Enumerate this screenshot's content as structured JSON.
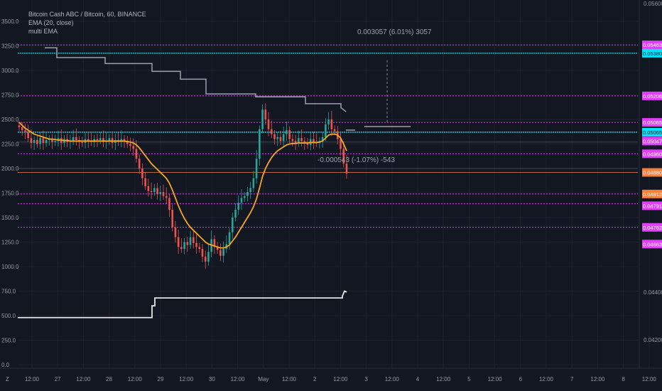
{
  "legend": {
    "title": "Bitcoin Cash ABC / Bitcoin, 60, BINANCE",
    "ema": "EMA (20, close)",
    "multi": "multi EMA"
  },
  "annotations": {
    "upper": "0.003057 (6.01%) 3057",
    "lower": "-0.000543 (-1.07%) -543"
  },
  "colors": {
    "background": "#131722",
    "grid": "#1e222d",
    "up": "#26a69a",
    "down": "#ef5350",
    "ema": "#f5a623",
    "level_magenta": "#e040fb",
    "level_cyan": "#00e5ff",
    "step_line": "#9aa0ae",
    "lower_step": "#e6e6e6",
    "orange_level": "#f57f3b"
  },
  "chart_data": {
    "type": "candlestick",
    "left_axis_ticks": [
      "3500.0",
      "3250.0",
      "3000.0",
      "2750.0",
      "2500.0",
      "2250.0",
      "2000.0",
      "1750.0",
      "1500.0",
      "1250.0",
      "1000.0",
      "750.0",
      "500.0",
      "250.0",
      "0.0"
    ],
    "right_axis_ticks": [
      "0.056000",
      "0.044000",
      "0.042000"
    ],
    "x_ticks": [
      "12:00",
      "27",
      "12:00",
      "28",
      "12:00",
      "29",
      "12:00",
      "30",
      "12:00",
      "May",
      "12:00",
      "2",
      "12:00",
      "3",
      "12:00",
      "4",
      "12:00",
      "5",
      "12:00",
      "6",
      "12:00",
      "7",
      "12:00",
      "8",
      "12:00"
    ],
    "price_tags": [
      {
        "label": "0.054632",
        "color": "#e040fb",
        "y": 3260
      },
      {
        "label": "0.053802",
        "color": "#00e5ff",
        "y": 3175
      },
      {
        "label": "0.052065",
        "color": "#e040fb",
        "y": 2740
      },
      {
        "label": "0.050654",
        "color": "#e040fb",
        "y": 2470
      },
      {
        "label": "0.050651",
        "color": "#00e5ff",
        "y": 2370
      },
      {
        "label": "0.050471",
        "color": "#e040fb",
        "y": 2280
      },
      {
        "label": "0.049606",
        "color": "#e040fb",
        "y": 2150
      },
      {
        "label": "0.048807",
        "color": "#f57f3b",
        "y": 1960
      },
      {
        "label": "0.048128",
        "color": "#f57f3b",
        "y": 1740
      },
      {
        "label": "0.047911",
        "color": "#e040fb",
        "y": 1620
      },
      {
        "label": "0.047621",
        "color": "#e040fb",
        "y": 1400
      },
      {
        "label": "0.046638",
        "color": "#e040fb",
        "y": 1230
      }
    ],
    "magenta_levels": [
      3260,
      2740,
      2470,
      2150,
      1740,
      1640,
      1400
    ],
    "cyan_levels": [
      3175,
      2370
    ],
    "orange_level": 1960,
    "gray_levels": [
      2270,
      2000
    ],
    "price_series": [
      2420,
      2390,
      2370,
      2310,
      2260,
      2290,
      2250,
      2310,
      2260,
      2290,
      2300,
      2270,
      2280,
      2310,
      2260,
      2300,
      2270,
      2280,
      2320,
      2290,
      2270,
      2260,
      2300,
      2280,
      2270,
      2300,
      2290,
      2310,
      2270,
      2280,
      2310,
      2260,
      2290,
      2270,
      2300,
      2280,
      2250,
      2230,
      2200,
      2100,
      2000,
      1900,
      1820,
      1770,
      1760,
      1800,
      1740,
      1760,
      1720,
      1700,
      1580,
      1400,
      1300,
      1200,
      1180,
      1250,
      1220,
      1300,
      1240,
      1200,
      1180,
      1100,
      1050,
      1150,
      1280,
      1200,
      1170,
      1110,
      1180,
      1230,
      1350,
      1500,
      1580,
      1650,
      1700,
      1720,
      1760,
      1800,
      1900,
      2100,
      2400,
      2600,
      2500,
      2400,
      2350,
      2300,
      2320,
      2280,
      2350,
      2390,
      2300,
      2280,
      2260,
      2310,
      2280,
      2260,
      2240,
      2300,
      2270,
      2260,
      2280,
      2320,
      2450,
      2500,
      2400,
      2380,
      2300,
      2200,
      2050,
      1950
    ],
    "ema_series": [
      2470,
      2440,
      2410,
      2390,
      2370,
      2350,
      2340,
      2330,
      2320,
      2310,
      2300,
      2300,
      2295,
      2290,
      2290,
      2285,
      2285,
      2280,
      2280,
      2280,
      2280,
      2280,
      2280,
      2280,
      2280,
      2280,
      2280,
      2280,
      2280,
      2280,
      2280,
      2280,
      2280,
      2280,
      2280,
      2280,
      2275,
      2270,
      2260,
      2240,
      2210,
      2170,
      2130,
      2090,
      2050,
      2020,
      1990,
      1960,
      1930,
      1900,
      1850,
      1780,
      1700,
      1620,
      1550,
      1490,
      1440,
      1400,
      1370,
      1340,
      1310,
      1280,
      1250,
      1230,
      1220,
      1210,
      1200,
      1190,
      1190,
      1200,
      1220,
      1260,
      1300,
      1350,
      1400,
      1450,
      1500,
      1550,
      1610,
      1690,
      1800,
      1920,
      2000,
      2060,
      2110,
      2150,
      2180,
      2200,
      2220,
      2240,
      2250,
      2255,
      2255,
      2260,
      2260,
      2260,
      2260,
      2265,
      2265,
      2265,
      2270,
      2280,
      2310,
      2340,
      2350,
      2350,
      2340,
      2310,
      2250,
      2180
    ],
    "upper_step": [
      [
        63,
        3230
      ],
      [
        80,
        3230
      ],
      [
        80,
        3130
      ],
      [
        148,
        3130
      ],
      [
        148,
        3070
      ],
      [
        214,
        3070
      ],
      [
        214,
        2990
      ],
      [
        254,
        2990
      ],
      [
        254,
        2910
      ],
      [
        290,
        2910
      ],
      [
        290,
        2760
      ],
      [
        360,
        2760
      ],
      [
        360,
        2730
      ],
      [
        430,
        2730
      ],
      [
        430,
        2660
      ],
      [
        480,
        2660
      ],
      [
        480,
        2620
      ],
      [
        487,
        2580
      ]
    ],
    "lower_step": [
      [
        25,
        480
      ],
      [
        214,
        480
      ],
      [
        214,
        600
      ],
      [
        218,
        600
      ],
      [
        218,
        680
      ],
      [
        482,
        680
      ],
      [
        482,
        700
      ],
      [
        485,
        750
      ],
      [
        488,
        740
      ]
    ],
    "measure_upper": {
      "x1": 513,
      "x2": 578,
      "y": 3175
    },
    "measure_lower": {
      "x1": 513,
      "x2": 578,
      "y": 2470
    }
  }
}
